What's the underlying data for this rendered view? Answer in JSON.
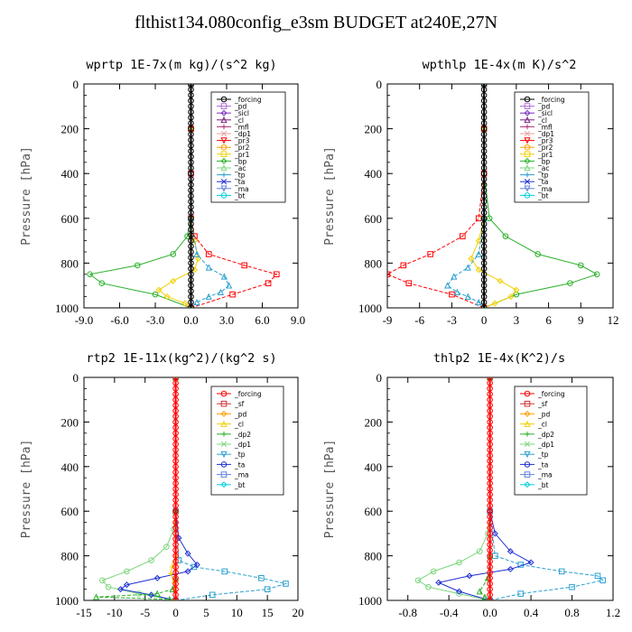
{
  "title": "flthist134.080config_e3sm  BUDGET at240E,27N",
  "chart_data": [
    {
      "type": "line",
      "title": "wprtp   1E-7x(m kg)/(s^2 kg)",
      "ylabel": "Pressure [hPa]",
      "xlim": [
        -9.0,
        9.0
      ],
      "ylim": [
        1000,
        0
      ],
      "xticks": [
        "-9.0",
        "-6.0",
        "-3.0",
        "0.0",
        "3.0",
        "6.0",
        "9.0"
      ],
      "xtick_values": [
        -9,
        -6,
        -3,
        0,
        3,
        6,
        9
      ],
      "yticks": [
        "0",
        "200",
        "400",
        "600",
        "800",
        "1000"
      ],
      "ytick_values": [
        0,
        200,
        400,
        600,
        800,
        1000
      ],
      "legend": [
        "_forcing",
        "_pd",
        "_sicl",
        "_cl",
        "_mfl",
        "_dp1",
        "_pr3",
        "_pr2",
        "_pr1",
        "_bp",
        "_ac",
        "_tp",
        "_ta",
        "_ma",
        "_bt"
      ],
      "legend_colors": [
        "#000000",
        "#b36bd6",
        "#7a2fbf",
        "#7a1f7a",
        "#b0307a",
        "#e8a0a0",
        "#ff0000",
        "#ff9e00",
        "#f0d000",
        "#2ab02a",
        "#7cd67c",
        "#2aa0d0",
        "#1e2fd6",
        "#6080e0",
        "#00d0e0"
      ],
      "series": [
        {
          "name": "_ac",
          "color": "#2ab02a",
          "x": [
            0,
            0,
            0,
            0,
            -0.3,
            -1.5,
            -4.5,
            -8.5,
            -7.5,
            -3,
            0
          ],
          "y": [
            0,
            200,
            400,
            600,
            680,
            760,
            810,
            850,
            890,
            940,
            1000
          ]
        },
        {
          "name": "_ta",
          "color": "#ff0000",
          "x": [
            0,
            0,
            0,
            0,
            0.3,
            1.5,
            4.5,
            7.2,
            6.5,
            3.5,
            0
          ],
          "y": [
            0,
            200,
            400,
            600,
            680,
            760,
            810,
            850,
            890,
            940,
            1000
          ]
        },
        {
          "name": "_pr1",
          "color": "#f0d000",
          "x": [
            0,
            0,
            0,
            0.3,
            0.6,
            0.3,
            -1.5,
            -2.7,
            -2.0,
            -0.5,
            0
          ],
          "y": [
            0,
            200,
            600,
            700,
            780,
            830,
            880,
            920,
            950,
            980,
            1000
          ]
        },
        {
          "name": "_tp",
          "color": "#2aa0d0",
          "x": [
            0,
            0,
            0.5,
            1.5,
            2.8,
            3.2,
            2.5,
            1.5,
            0.5,
            0
          ],
          "y": [
            0,
            600,
            760,
            820,
            860,
            900,
            930,
            950,
            975,
            1000
          ]
        },
        {
          "name": "_forcing",
          "color": "#000000",
          "x": [
            0,
            0,
            0,
            0,
            0,
            0,
            0,
            0,
            0,
            0,
            0
          ],
          "y": [
            0,
            100,
            200,
            300,
            400,
            500,
            600,
            700,
            800,
            900,
            1000
          ]
        }
      ]
    },
    {
      "type": "line",
      "title": "wpthlp   1E-4x(m K)/s^2",
      "ylabel": "Pressure [hPa]",
      "xlim": [
        -9,
        12
      ],
      "ylim": [
        1000,
        0
      ],
      "xticks": [
        "-9",
        "-6",
        "-3",
        "0",
        "3",
        "6",
        "9",
        "12"
      ],
      "xtick_values": [
        -9,
        -6,
        -3,
        0,
        3,
        6,
        9,
        12
      ],
      "yticks": [
        "0",
        "200",
        "400",
        "600",
        "800",
        "1000"
      ],
      "ytick_values": [
        0,
        200,
        400,
        600,
        800,
        1000
      ],
      "legend": [
        "_forcing",
        "_pd",
        "_sicl",
        "_cl",
        "_mfl",
        "_dp1",
        "_pr3",
        "_pr2",
        "_pr1",
        "_bp",
        "_ac",
        "_tp",
        "_ta",
        "_ma",
        "_bt"
      ],
      "legend_colors": [
        "#000000",
        "#b36bd6",
        "#7a2fbf",
        "#7a1f7a",
        "#b0307a",
        "#e8a0a0",
        "#ff0000",
        "#ff9e00",
        "#f0d000",
        "#2ab02a",
        "#7cd67c",
        "#2aa0d0",
        "#1e2fd6",
        "#6080e0",
        "#00d0e0"
      ],
      "series": [
        {
          "name": "_ac",
          "color": "#2ab02a",
          "x": [
            0,
            0,
            0,
            0.5,
            2,
            5,
            9,
            10.5,
            8,
            3,
            0
          ],
          "y": [
            0,
            200,
            400,
            600,
            680,
            760,
            810,
            850,
            890,
            940,
            1000
          ]
        },
        {
          "name": "_ta",
          "color": "#ff0000",
          "x": [
            0,
            0,
            0,
            -0.5,
            -2,
            -5,
            -7.5,
            -9,
            -7,
            -3,
            0
          ],
          "y": [
            0,
            200,
            400,
            600,
            680,
            760,
            810,
            850,
            890,
            940,
            1000
          ]
        },
        {
          "name": "_pr1",
          "color": "#f0d000",
          "x": [
            0,
            0,
            0,
            -0.5,
            -1.2,
            -0.5,
            1.5,
            3,
            2.5,
            1,
            0
          ],
          "y": [
            0,
            200,
            600,
            700,
            780,
            830,
            880,
            920,
            950,
            980,
            1000
          ]
        },
        {
          "name": "_tp",
          "color": "#2aa0d0",
          "x": [
            0,
            0,
            -0.5,
            -1.5,
            -2.8,
            -3.4,
            -2.5,
            -1.5,
            -0.5,
            0
          ],
          "y": [
            0,
            600,
            760,
            820,
            860,
            900,
            930,
            950,
            975,
            1000
          ]
        },
        {
          "name": "_forcing",
          "color": "#000000",
          "x": [
            0,
            0,
            0,
            0,
            0,
            0,
            0,
            0,
            0,
            0,
            0
          ],
          "y": [
            0,
            100,
            200,
            300,
            400,
            500,
            600,
            700,
            800,
            900,
            1000
          ]
        }
      ]
    },
    {
      "type": "line",
      "title": "rtp2   1E-11x(kg^2)/(kg^2 s)",
      "ylabel": "Pressure [hPa]",
      "xlim": [
        -15,
        20
      ],
      "ylim": [
        1000,
        0
      ],
      "xticks": [
        "-15",
        "-10",
        "-5",
        "0",
        "5",
        "10",
        "15",
        "20"
      ],
      "xtick_values": [
        -15,
        -10,
        -5,
        0,
        5,
        10,
        15,
        20
      ],
      "yticks": [
        "0",
        "200",
        "400",
        "600",
        "800",
        "1000"
      ],
      "ytick_values": [
        0,
        200,
        400,
        600,
        800,
        1000
      ],
      "legend": [
        "_forcing",
        "_sf",
        "_pd",
        "_cl",
        "_dp2",
        "_dp1",
        "_tp",
        "_ta",
        "_ma",
        "_bt"
      ],
      "legend_colors": [
        "#ff0000",
        "#d03030",
        "#ff9e00",
        "#f0d000",
        "#2ab02a",
        "#7cd67c",
        "#2aa0d0",
        "#1e2fd6",
        "#6080e0",
        "#00d0e0"
      ],
      "series": [
        {
          "name": "_dp1",
          "color": "#7cd67c",
          "x": [
            0,
            0,
            0,
            -0.3,
            -1.5,
            -4,
            -8,
            -12,
            -11,
            -6,
            0
          ],
          "y": [
            0,
            200,
            600,
            680,
            760,
            820,
            870,
            910,
            940,
            970,
            1000
          ]
        },
        {
          "name": "_tp",
          "color": "#2aa0d0",
          "x": [
            0,
            0,
            0.5,
            3,
            8,
            14,
            18,
            15,
            6,
            0
          ],
          "y": [
            0,
            600,
            820,
            850,
            870,
            900,
            925,
            950,
            975,
            1000
          ]
        },
        {
          "name": "_ta",
          "color": "#1e2fd6",
          "x": [
            0,
            0,
            0.5,
            2,
            3.5,
            2,
            -3,
            -8,
            -9,
            -4,
            0
          ],
          "y": [
            0,
            600,
            720,
            790,
            840,
            870,
            900,
            930,
            950,
            975,
            1000
          ]
        },
        {
          "name": "_dp2",
          "color": "#2ab02a",
          "x": [
            0,
            0,
            0,
            -0.5,
            -3,
            -13,
            -1,
            0
          ],
          "y": [
            0,
            600,
            900,
            950,
            970,
            985,
            995,
            1000
          ]
        },
        {
          "name": "_cl",
          "color": "#f0d000",
          "x": [
            0,
            0,
            -0.6,
            -0.8,
            -0.3,
            0
          ],
          "y": [
            0,
            800,
            850,
            880,
            920,
            1000
          ]
        },
        {
          "name": "_forcing",
          "color": "#ff0000",
          "x": [
            0,
            0,
            0,
            0,
            0,
            0,
            0,
            0,
            0,
            0,
            0
          ],
          "y": [
            0,
            100,
            200,
            300,
            400,
            500,
            600,
            700,
            800,
            900,
            1000
          ]
        }
      ]
    },
    {
      "type": "line",
      "title": "thlp2   1E-4x(K^2)/s",
      "ylabel": "Pressure [hPa]",
      "xlim": [
        -1.0,
        1.2
      ],
      "ylim": [
        1000,
        0
      ],
      "xticks": [
        "-0.8",
        "-0.4",
        "0.0",
        "0.4",
        "0.8",
        "1.2"
      ],
      "xtick_values": [
        -0.8,
        -0.4,
        0.0,
        0.4,
        0.8,
        1.2
      ],
      "yticks": [
        "0",
        "200",
        "400",
        "600",
        "800",
        "1000"
      ],
      "ytick_values": [
        0,
        200,
        400,
        600,
        800,
        1000
      ],
      "legend": [
        "_forcing",
        "_sf",
        "_pd",
        "_cl",
        "_dp2",
        "_dp1",
        "_tp",
        "_ta",
        "_ma",
        "_bt"
      ],
      "legend_colors": [
        "#ff0000",
        "#d03030",
        "#ff9e00",
        "#f0d000",
        "#2ab02a",
        "#7cd67c",
        "#2aa0d0",
        "#1e2fd6",
        "#6080e0",
        "#00d0e0"
      ],
      "series": [
        {
          "name": "_dp1",
          "color": "#7cd67c",
          "x": [
            0,
            0,
            -0.02,
            -0.1,
            -0.3,
            -0.55,
            -0.7,
            -0.6,
            -0.3,
            0
          ],
          "y": [
            0,
            600,
            700,
            780,
            830,
            870,
            910,
            940,
            970,
            1000
          ]
        },
        {
          "name": "_tp",
          "color": "#2aa0d0",
          "x": [
            0,
            0,
            0.05,
            0.3,
            0.7,
            1.05,
            1.1,
            0.8,
            0.3,
            0
          ],
          "y": [
            0,
            600,
            800,
            840,
            870,
            890,
            910,
            940,
            970,
            1000
          ]
        },
        {
          "name": "_ta",
          "color": "#1e2fd6",
          "x": [
            0,
            0,
            0.05,
            0.2,
            0.4,
            0.2,
            -0.2,
            -0.5,
            -0.3,
            0
          ],
          "y": [
            0,
            600,
            700,
            780,
            830,
            860,
            890,
            920,
            960,
            1000
          ]
        },
        {
          "name": "_dp2",
          "color": "#2ab02a",
          "x": [
            0,
            0,
            -0.02,
            -0.1,
            -0.05,
            0
          ],
          "y": [
            0,
            800,
            900,
            960,
            985,
            1000
          ]
        },
        {
          "name": "_forcing",
          "color": "#ff0000",
          "x": [
            0,
            0,
            0,
            0,
            0,
            0,
            0,
            0,
            0,
            0,
            0
          ],
          "y": [
            0,
            100,
            200,
            300,
            400,
            500,
            600,
            700,
            800,
            900,
            1000
          ]
        }
      ]
    }
  ]
}
